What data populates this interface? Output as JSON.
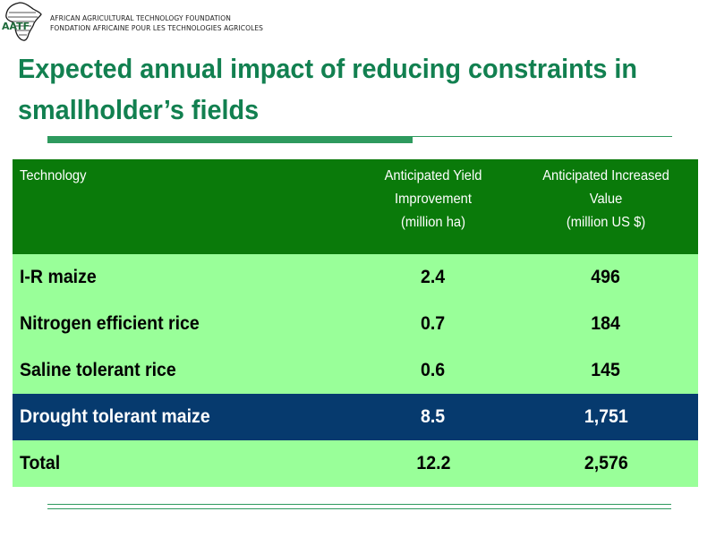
{
  "logo": {
    "line1": "AFRICAN AGRICULTURAL TECHNOLOGY FOUNDATION",
    "line2": "FONDATION AFRICAINE POUR LES TECHNOLOGIES AGRICOLES",
    "abbr": "AATF"
  },
  "title": "Expected annual impact of reducing constraints in smallholder’s fields",
  "table": {
    "headers": {
      "technology": "Technology",
      "yield_line1": "Anticipated Yield",
      "yield_line2": "Improvement",
      "yield_line3": "(million ha)",
      "value_line1": "Anticipated Increased",
      "value_line2": "Value",
      "value_line3": "(million US $)"
    },
    "rows": [
      {
        "technology": "I-R maize",
        "yield": "2.4",
        "value": "496"
      },
      {
        "technology": "Nitrogen efficient rice",
        "yield": "0.7",
        "value": "184"
      },
      {
        "technology": "Saline tolerant rice",
        "yield": "0.6",
        "value": "145"
      },
      {
        "technology": "Drought tolerant maize",
        "yield": "8.5",
        "value": "1,751"
      },
      {
        "technology": "Total",
        "yield": "12.2",
        "value": "2,576"
      }
    ]
  },
  "colors": {
    "title": "#128050",
    "header_bg": "#0a7a0a",
    "row_bg": "#99ff99",
    "highlight_bg": "#063a6e",
    "rule": "#2e9a5e"
  }
}
